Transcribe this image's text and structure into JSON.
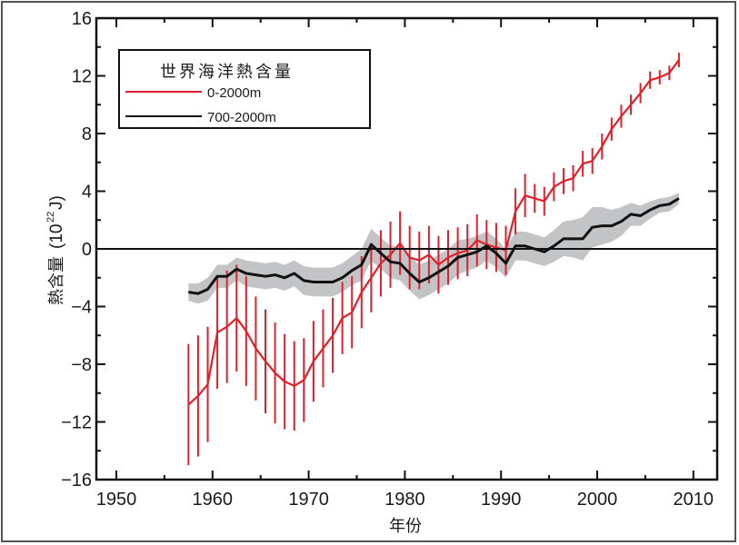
{
  "chart_data": {
    "type": "line",
    "title": "",
    "xlabel": "年份",
    "ylabel_main": "熱含量",
    "ylabel_unit_prefix": "(10",
    "ylabel_unit_exp": "22",
    "ylabel_unit_suffix": "J)",
    "xlim": [
      1947.9,
      2014.5
    ],
    "ylim": [
      -16,
      16
    ],
    "x_ticks": [
      1950,
      1960,
      1970,
      1980,
      1990,
      2000,
      2010
    ],
    "x_tick_labels": [
      "1950",
      "1960",
      "1970",
      "1980",
      "1990",
      "2000",
      "2010"
    ],
    "x_minor_ticks": [
      1955,
      1965,
      1975,
      1985,
      1995,
      2005
    ],
    "y_ticks": [
      16,
      12,
      8,
      4,
      0,
      -4,
      -8,
      -12,
      -16
    ],
    "y_tick_labels": [
      "16",
      "12",
      "8",
      "4",
      "0",
      "−4",
      "−8",
      "−12",
      "−16"
    ],
    "y_minor_ticks": [
      14,
      10,
      6,
      2,
      -2,
      -6,
      -10,
      -14
    ],
    "zero_line": 0,
    "grid": false,
    "legend": {
      "title": "世界海洋熱含量",
      "position": "top-left",
      "entries": [
        {
          "label": "0-2000m",
          "color": "#e0202a"
        },
        {
          "label": "700-2000m",
          "color": "#111111"
        }
      ]
    },
    "series": [
      {
        "name": "0-2000m",
        "color": "#e0202a",
        "style": "line-with-error-bars",
        "x": [
          1957.5,
          1958.5,
          1959.5,
          1960.5,
          1961.5,
          1962.5,
          1963.5,
          1964.5,
          1965.5,
          1966.5,
          1967.5,
          1968.5,
          1969.5,
          1970.5,
          1971.5,
          1972.5,
          1973.5,
          1974.5,
          1975.5,
          1976.5,
          1977.5,
          1978.5,
          1979.5,
          1980.5,
          1981.5,
          1982.5,
          1983.5,
          1984.5,
          1985.5,
          1986.5,
          1987.5,
          1988.5,
          1989.5,
          1990.5,
          1991.5,
          1992.5,
          1993.5,
          1994.5,
          1995.5,
          1996.5,
          1997.5,
          1998.5,
          1999.5,
          2000.5,
          2001.5,
          2002.5,
          2003.5,
          2004.5,
          2005.5,
          2006.5,
          2007.5,
          2008.5
        ],
        "y": [
          -10.8,
          -10.2,
          -9.4,
          -5.8,
          -5.4,
          -4.8,
          -5.7,
          -6.9,
          -7.8,
          -8.6,
          -9.2,
          -9.5,
          -9.1,
          -7.8,
          -6.9,
          -6.0,
          -4.8,
          -4.4,
          -3.0,
          -2.0,
          -1.0,
          -0.4,
          0.4,
          -0.6,
          -0.8,
          -0.4,
          -1.1,
          -0.6,
          -0.3,
          -0.1,
          0.6,
          0.3,
          0.1,
          -0.1,
          2.6,
          3.7,
          3.5,
          3.3,
          4.3,
          4.7,
          4.9,
          5.9,
          6.1,
          7.1,
          8.3,
          9.2,
          10.0,
          10.8,
          11.7,
          11.9,
          12.2,
          13.1
        ],
        "error": [
          4.2,
          4.2,
          4.0,
          3.9,
          3.9,
          3.7,
          3.8,
          3.6,
          3.6,
          3.5,
          3.3,
          3.1,
          2.9,
          2.8,
          2.7,
          2.6,
          2.5,
          2.5,
          2.5,
          2.4,
          2.3,
          2.3,
          2.2,
          2.2,
          2.0,
          2.0,
          2.0,
          1.9,
          1.8,
          1.8,
          1.8,
          1.7,
          1.7,
          1.7,
          1.6,
          1.5,
          1.0,
          1.0,
          1.0,
          0.9,
          0.9,
          0.9,
          0.9,
          0.9,
          0.8,
          0.8,
          0.7,
          0.7,
          0.6,
          0.5,
          0.5,
          0.5
        ]
      },
      {
        "name": "700-2000m",
        "color": "#111111",
        "style": "line-with-uncertainty-band",
        "band_color": "#c3c4c6",
        "x": [
          1957.5,
          1958.5,
          1959.5,
          1960.5,
          1961.5,
          1962.5,
          1963.5,
          1964.5,
          1965.5,
          1966.5,
          1967.5,
          1968.5,
          1969.5,
          1970.5,
          1971.5,
          1972.5,
          1973.5,
          1974.5,
          1975.5,
          1976.5,
          1977.5,
          1978.5,
          1979.5,
          1980.5,
          1981.5,
          1982.5,
          1983.5,
          1984.5,
          1985.5,
          1986.5,
          1987.5,
          1988.5,
          1989.5,
          1990.5,
          1991.5,
          1992.5,
          1993.5,
          1994.5,
          1995.5,
          1996.5,
          1997.5,
          1998.5,
          1999.5,
          2000.5,
          2001.5,
          2002.5,
          2003.5,
          2004.5,
          2005.5,
          2006.5,
          2007.5,
          2008.5
        ],
        "y": [
          -3.0,
          -3.1,
          -2.8,
          -1.9,
          -1.9,
          -1.4,
          -1.7,
          -1.8,
          -1.9,
          -1.8,
          -2.0,
          -1.7,
          -2.2,
          -2.3,
          -2.3,
          -2.3,
          -2.0,
          -1.5,
          -1.1,
          0.3,
          -0.3,
          -0.9,
          -1.0,
          -1.7,
          -2.3,
          -2.0,
          -1.6,
          -1.2,
          -0.6,
          -0.4,
          -0.2,
          0.2,
          -0.3,
          -1.0,
          0.2,
          0.2,
          0.0,
          -0.2,
          0.2,
          0.7,
          0.7,
          0.7,
          1.5,
          1.6,
          1.6,
          1.9,
          2.4,
          2.3,
          2.7,
          3.0,
          3.1,
          3.5
        ],
        "band_halfwidth": [
          0.6,
          0.7,
          0.8,
          0.8,
          0.8,
          0.8,
          0.9,
          0.9,
          0.9,
          0.9,
          0.9,
          0.9,
          1.0,
          1.0,
          1.0,
          1.0,
          1.0,
          1.0,
          1.1,
          1.1,
          1.1,
          1.1,
          1.2,
          1.2,
          1.2,
          1.2,
          1.2,
          1.2,
          1.2,
          1.1,
          1.1,
          1.0,
          1.0,
          1.0,
          1.0,
          1.0,
          1.0,
          1.0,
          1.1,
          1.2,
          1.3,
          1.5,
          1.4,
          1.3,
          1.1,
          1.0,
          0.8,
          0.7,
          0.6,
          0.5,
          0.5,
          0.4
        ]
      }
    ]
  }
}
